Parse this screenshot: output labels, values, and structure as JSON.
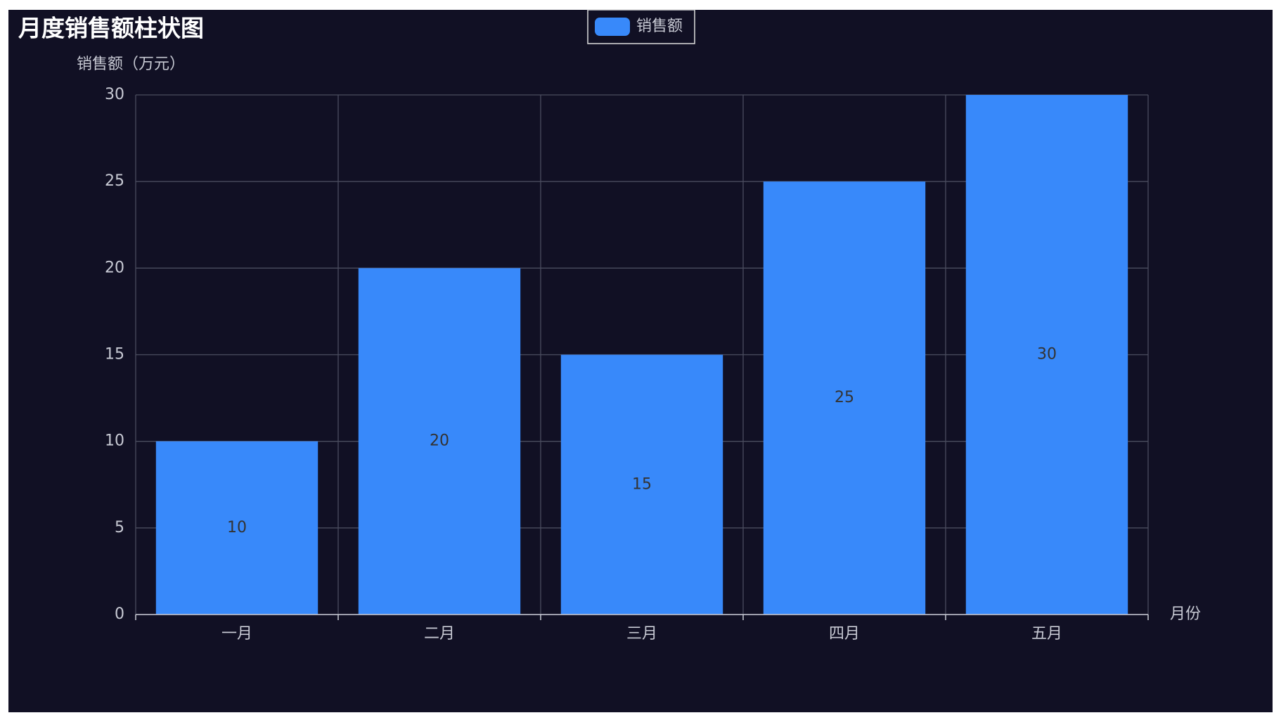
{
  "chart_data": {
    "type": "bar",
    "title": "月度销售额柱状图",
    "y_label": "销售额（万元）",
    "x_label": "月份",
    "categories": [
      "一月",
      "二月",
      "三月",
      "四月",
      "五月"
    ],
    "series": [
      {
        "name": "销售额",
        "color": "#3889fa",
        "values": [
          10,
          20,
          15,
          25,
          30
        ]
      }
    ],
    "ylim": [
      0,
      30
    ],
    "yticks": [
      0,
      5,
      10,
      15,
      20,
      25,
      30
    ],
    "grid": true,
    "legend": "top"
  }
}
